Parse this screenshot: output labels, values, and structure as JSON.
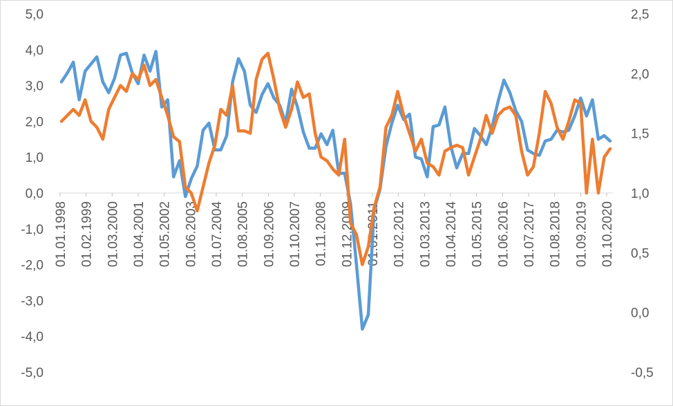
{
  "chart_data": {
    "type": "line",
    "title": "",
    "xlabel": "",
    "ylabel": "",
    "ylim_left": [
      -5,
      5
    ],
    "ylim_right": [
      -0.5,
      2.5
    ],
    "left_ticks": [
      "5,0",
      "4,0",
      "3,0",
      "2,0",
      "1,0",
      "0,0",
      "-1,0",
      "-2,0",
      "-3,0",
      "-4,0",
      "-5,0"
    ],
    "right_ticks": [
      "2,5",
      "2,0",
      "1,5",
      "1,0",
      "0,5",
      "0,0",
      "-0,5"
    ],
    "x_tick_labels": [
      "01.01.1998",
      "01.02.1999",
      "01.03.2000",
      "01.04.2001",
      "01.05.2002",
      "01.06.2003",
      "01.07.2004",
      "01.08.2005",
      "01.09.2006",
      "01.10.2007",
      "01.11.2008",
      "01.12.2009",
      "01.01.2011",
      "01.02.2012",
      "01.03.2013",
      "01.04.2014",
      "01.05.2015",
      "01.06.2016",
      "01.07.2017",
      "01.08.2018",
      "01.09.2019",
      "01.10.2020"
    ],
    "grid": false,
    "legend": "none",
    "series": [
      {
        "axis": "left",
        "color": "#5b9bd5",
        "values": [
          3.1,
          3.35,
          3.65,
          2.6,
          3.4,
          3.6,
          3.8,
          3.1,
          2.8,
          3.2,
          3.85,
          3.9,
          3.35,
          3.05,
          3.85,
          3.4,
          3.95,
          2.4,
          2.6,
          0.45,
          0.9,
          -0.1,
          0.4,
          0.75,
          1.75,
          1.95,
          1.2,
          1.2,
          1.6,
          3.1,
          3.75,
          3.4,
          2.45,
          2.25,
          2.75,
          3.05,
          2.65,
          2.45,
          1.95,
          2.9,
          2.4,
          1.7,
          1.25,
          1.25,
          1.65,
          1.35,
          1.75,
          0.55,
          0.55,
          -0.3,
          -2.0,
          -3.8,
          -3.4,
          -0.45,
          0.1,
          1.3,
          1.95,
          2.45,
          2.05,
          2.2,
          1.0,
          0.95,
          0.45,
          1.85,
          1.9,
          2.4,
          1.3,
          0.7,
          1.1,
          1.1,
          1.8,
          1.6,
          1.35,
          1.85,
          2.55,
          3.15,
          2.8,
          2.3,
          2.0,
          1.2,
          1.1,
          1.05,
          1.45,
          1.5,
          1.75,
          1.7,
          1.75,
          2.15,
          2.65,
          2.15,
          2.6,
          1.5,
          1.6,
          1.45
        ]
      },
      {
        "axis": "right",
        "color": "#ed7d31",
        "values": [
          1.6,
          1.65,
          1.7,
          1.65,
          1.78,
          1.6,
          1.55,
          1.45,
          1.7,
          1.8,
          1.9,
          1.85,
          2.0,
          1.95,
          2.07,
          1.9,
          1.95,
          1.8,
          1.65,
          1.47,
          1.43,
          1.05,
          1.0,
          0.85,
          1.05,
          1.25,
          1.4,
          1.7,
          1.65,
          1.9,
          1.52,
          1.52,
          1.5,
          1.95,
          2.12,
          2.17,
          1.95,
          1.7,
          1.55,
          1.7,
          1.93,
          1.8,
          1.83,
          1.5,
          1.3,
          1.27,
          1.2,
          1.15,
          1.45,
          0.75,
          0.65,
          0.4,
          0.55,
          0.88,
          1.05,
          1.55,
          1.65,
          1.85,
          1.65,
          1.5,
          1.35,
          1.45,
          1.25,
          1.22,
          1.15,
          1.35,
          1.38,
          1.4,
          1.38,
          1.15,
          1.3,
          1.45,
          1.65,
          1.5,
          1.65,
          1.7,
          1.72,
          1.65,
          1.35,
          1.15,
          1.22,
          1.5,
          1.85,
          1.75,
          1.55,
          1.45,
          1.6,
          1.78,
          1.75,
          1.0,
          1.45,
          1.0,
          1.3,
          1.37
        ]
      }
    ]
  }
}
